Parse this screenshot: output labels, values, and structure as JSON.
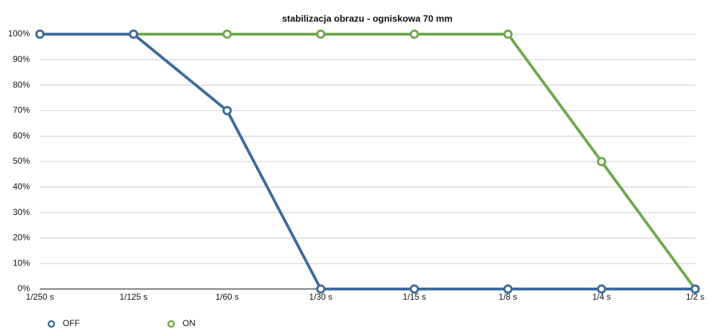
{
  "chart_data": {
    "type": "line",
    "title": "stabilizacja obrazu - ogniskowa 70 mm",
    "categories": [
      "1/250 s",
      "1/125 s",
      "1/60 s",
      "1/30 s",
      "1/15 s",
      "1/8 s",
      "1/4 s",
      "1/2 s"
    ],
    "series": [
      {
        "name": "OFF",
        "color": "#3f6b9c",
        "values": [
          100,
          100,
          70,
          0,
          0,
          0,
          0,
          0
        ]
      },
      {
        "name": "ON",
        "color": "#6fa84f",
        "values": [
          100,
          100,
          100,
          100,
          100,
          100,
          50,
          0
        ]
      }
    ],
    "ylim": [
      0,
      100
    ],
    "yticks": [
      {
        "value": 0,
        "label": "0%"
      },
      {
        "value": 10,
        "label": "10%"
      },
      {
        "value": 20,
        "label": "20%"
      },
      {
        "value": 30,
        "label": "30%"
      },
      {
        "value": 40,
        "label": "40%"
      },
      {
        "value": 50,
        "label": "50%"
      },
      {
        "value": 60,
        "label": "60%"
      },
      {
        "value": 70,
        "label": "70%"
      },
      {
        "value": 80,
        "label": "80%"
      },
      {
        "value": 90,
        "label": "90%"
      },
      {
        "value": 100,
        "label": "100%"
      }
    ],
    "grid": true,
    "legend": "bottom-left"
  }
}
